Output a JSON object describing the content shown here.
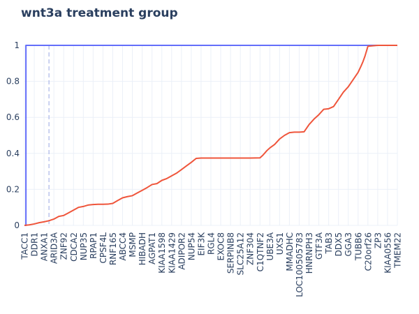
{
  "chart_data": {
    "type": "line",
    "title": "wnt3a treatment group",
    "xlabel": "",
    "ylabel": "",
    "ylim": [
      0,
      1
    ],
    "yticks": [
      0,
      0.2,
      0.4,
      0.6,
      0.8,
      1
    ],
    "grid": true,
    "categories": [
      "TACC1",
      "DDR1",
      "ANXA1",
      "ARID3A",
      "ZNF92",
      "CDCA2",
      "NUP35",
      "RPAP1",
      "CPSF4L",
      "RNF165",
      "ABCC4",
      "MSMP",
      "HIBADH",
      "AGPAT1",
      "KIAA1598",
      "KIAA1429",
      "ADIPOR2",
      "NUP54",
      "EIF3K",
      "RGL4",
      "EXOC8",
      "SERPINB8",
      "SLC25A12",
      "ZNF304",
      "C1QTNF2",
      "UBE3A",
      "UXS1",
      "MMADHC",
      "LOC100505783",
      "HNRNPH3",
      "GTF3A",
      "TAB3",
      "DDX5",
      "GGA3",
      "TUBB6",
      "C20orf26",
      "ZP3",
      "KIAA0556",
      "TMEM22"
    ],
    "series": [
      {
        "name": "",
        "color": "#636efa",
        "style": "step",
        "x": [
          0,
          0.15,
          0.15,
          38
        ],
        "y": [
          0,
          0,
          1,
          1
        ]
      },
      {
        "name": "",
        "color": "#EF553B",
        "style": "line",
        "x": [
          0,
          0.5,
          1,
          1.5,
          2,
          2.5,
          3,
          3.5,
          4,
          4.5,
          5,
          5.5,
          6,
          6.5,
          7,
          7.5,
          8,
          8.5,
          9,
          9.5,
          10,
          10.5,
          11,
          11.5,
          12,
          12.5,
          13,
          13.5,
          14,
          14.5,
          15,
          15.5,
          16,
          16.5,
          17,
          17.5,
          18,
          18.5,
          19,
          20,
          21,
          22,
          23,
          24,
          24.3,
          24.7,
          25,
          25.5,
          26,
          26.5,
          27,
          27.5,
          28,
          28.5,
          29,
          29.5,
          30,
          30.5,
          31,
          31.5,
          32,
          32.5,
          33,
          33.5,
          34,
          34.3,
          34.5,
          34.7,
          35,
          36,
          37,
          38
        ],
        "y": [
          0.0,
          0.003,
          0.008,
          0.015,
          0.02,
          0.026,
          0.035,
          0.05,
          0.055,
          0.07,
          0.085,
          0.1,
          0.105,
          0.113,
          0.116,
          0.117,
          0.117,
          0.118,
          0.122,
          0.138,
          0.153,
          0.16,
          0.165,
          0.18,
          0.195,
          0.21,
          0.227,
          0.232,
          0.25,
          0.26,
          0.275,
          0.29,
          0.31,
          0.33,
          0.35,
          0.372,
          0.374,
          0.374,
          0.374,
          0.374,
          0.374,
          0.374,
          0.374,
          0.375,
          0.39,
          0.415,
          0.43,
          0.45,
          0.48,
          0.5,
          0.515,
          0.518,
          0.518,
          0.52,
          0.56,
          0.59,
          0.615,
          0.645,
          0.648,
          0.66,
          0.7,
          0.74,
          0.77,
          0.81,
          0.85,
          0.885,
          0.91,
          0.94,
          0.995,
          1.0,
          1.0,
          1.0
        ]
      }
    ],
    "reference_line": {
      "x": 2.5,
      "color": "#a9b5e8",
      "style": "dashed"
    }
  }
}
